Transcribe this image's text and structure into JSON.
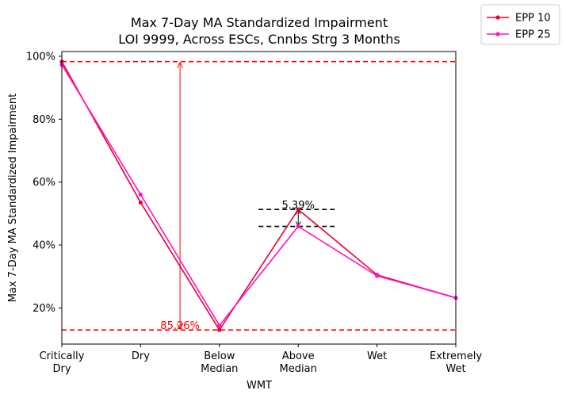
{
  "chart_data": {
    "type": "line",
    "title_line1": "Max 7-Day MA Standardized Impairment",
    "title_line2": "LOI 9999, Across ESCs, Cnnbs Strg 3 Months",
    "xlabel": "WMT",
    "ylabel": "Max 7-Day MA Standardized Impairment",
    "categories": [
      [
        "Critically",
        "Dry"
      ],
      [
        "Dry"
      ],
      [
        "Below",
        "Median"
      ],
      [
        "Above",
        "Median"
      ],
      [
        "Wet"
      ],
      [
        "Extremely",
        "Wet"
      ]
    ],
    "yticks": [
      "20%",
      "40%",
      "60%",
      "80%",
      "100%"
    ],
    "ytick_values": [
      20,
      40,
      60,
      80,
      100
    ],
    "ylim": [
      8.5,
      101.5
    ],
    "grid": false,
    "legend_position": "outside top-right",
    "series": [
      {
        "name": "EPP 10",
        "color": "#e8002f",
        "values": [
          98.3,
          53.5,
          13.0,
          51.3,
          30.5,
          23.2
        ]
      },
      {
        "name": "EPP 25",
        "color": "#ff14c0",
        "values": [
          97.3,
          56.0,
          14.4,
          45.9,
          30.2,
          23.2
        ]
      }
    ],
    "annotations": {
      "range": {
        "label": "85.26%",
        "color": "#ff0000",
        "upper": 98.3,
        "lower": 13.0,
        "x_position": 1.5
      },
      "difference": {
        "label": "5.39%",
        "color": "#000000",
        "upper": 51.3,
        "lower": 45.9,
        "x_position": 3
      }
    }
  }
}
